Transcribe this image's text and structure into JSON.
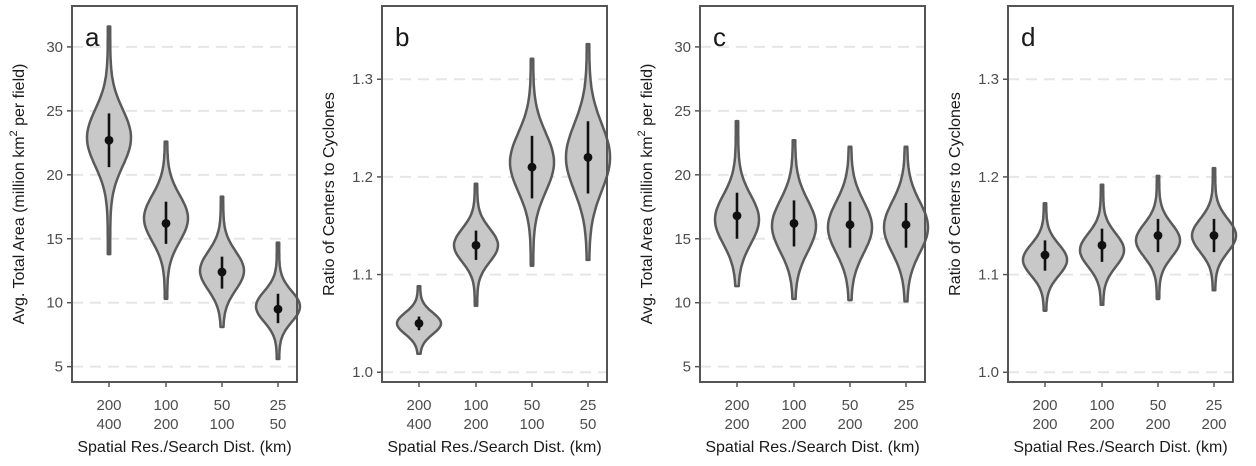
{
  "colors": {
    "violin_fill": "#c8c8c8",
    "violin_stroke": "#5a5a5a",
    "point": "#111111",
    "interval": "#111111",
    "grid": "#e6e6e6",
    "frame": "#555555",
    "tick_text": "#4d4d4d"
  },
  "chart_data": [
    {
      "type": "violin",
      "panel_label": "a",
      "xlabel": "Spatial Res./Search Dist. (km)",
      "ylabel_parts": [
        "Avg. Total Area (million km",
        "2",
        " per field)"
      ],
      "ylim": [
        3.8,
        33.2
      ],
      "yticks": [
        5,
        10,
        15,
        20,
        25,
        30
      ],
      "grid": true,
      "categories": [
        [
          "200",
          "400"
        ],
        [
          "100",
          "200"
        ],
        [
          "50",
          "100"
        ],
        [
          "25",
          "50"
        ]
      ],
      "series": [
        {
          "min": 13.8,
          "max": 31.6,
          "center": 22.7,
          "lower": 20.6,
          "upper": 24.8,
          "mode": 22.9,
          "spread": 2.2
        },
        {
          "min": 10.3,
          "max": 22.6,
          "center": 16.2,
          "lower": 14.6,
          "upper": 17.9,
          "mode": 16.6,
          "spread": 1.8
        },
        {
          "min": 8.1,
          "max": 18.3,
          "center": 12.4,
          "lower": 11.1,
          "upper": 13.6,
          "mode": 12.5,
          "spread": 1.5
        },
        {
          "min": 5.6,
          "max": 14.7,
          "center": 9.5,
          "lower": 8.4,
          "upper": 10.7,
          "mode": 9.7,
          "spread": 1.2
        }
      ]
    },
    {
      "type": "violin",
      "panel_label": "b",
      "xlabel": "Spatial Res./Search Dist. (km)",
      "ylabel_parts": [
        "Ratio of Centers to Cyclones",
        "",
        ""
      ],
      "ylim": [
        0.99,
        1.375
      ],
      "yticks": [
        1.0,
        1.1,
        1.2,
        1.3
      ],
      "grid": true,
      "categories": [
        [
          "200",
          "400"
        ],
        [
          "100",
          "200"
        ],
        [
          "50",
          "100"
        ],
        [
          "25",
          "50"
        ]
      ],
      "series": [
        {
          "min": 1.019,
          "max": 1.088,
          "center": 1.05,
          "lower": 1.043,
          "upper": 1.057,
          "mode": 1.05,
          "spread": 0.011
        },
        {
          "min": 1.068,
          "max": 1.193,
          "center": 1.13,
          "lower": 1.115,
          "upper": 1.145,
          "mode": 1.13,
          "spread": 0.017
        },
        {
          "min": 1.109,
          "max": 1.321,
          "center": 1.21,
          "lower": 1.178,
          "upper": 1.242,
          "mode": 1.215,
          "spread": 0.03
        },
        {
          "min": 1.115,
          "max": 1.336,
          "center": 1.22,
          "lower": 1.183,
          "upper": 1.257,
          "mode": 1.22,
          "spread": 0.034
        }
      ]
    },
    {
      "type": "violin",
      "panel_label": "c",
      "xlabel": "Spatial Res./Search Dist. (km)",
      "ylabel_parts": [
        "Avg. Total Area (million km",
        "2",
        " per field)"
      ],
      "ylim": [
        3.8,
        33.2
      ],
      "yticks": [
        5,
        10,
        15,
        20,
        25,
        30
      ],
      "grid": true,
      "categories": [
        [
          "200",
          "200"
        ],
        [
          "100",
          "200"
        ],
        [
          "50",
          "200"
        ],
        [
          "25",
          "200"
        ]
      ],
      "series": [
        {
          "min": 11.3,
          "max": 24.2,
          "center": 16.8,
          "lower": 15.0,
          "upper": 18.6,
          "mode": 16.5,
          "spread": 1.9
        },
        {
          "min": 10.3,
          "max": 22.7,
          "center": 16.2,
          "lower": 14.4,
          "upper": 18.0,
          "mode": 16.0,
          "spread": 2.0
        },
        {
          "min": 10.2,
          "max": 22.2,
          "center": 16.1,
          "lower": 14.3,
          "upper": 17.9,
          "mode": 15.9,
          "spread": 2.0
        },
        {
          "min": 10.1,
          "max": 22.2,
          "center": 16.1,
          "lower": 14.3,
          "upper": 17.8,
          "mode": 15.9,
          "spread": 2.0
        }
      ]
    },
    {
      "type": "violin",
      "panel_label": "d",
      "xlabel": "Spatial Res./Search Dist. (km)",
      "ylabel_parts": [
        "Ratio of Centers to Cyclones",
        "",
        ""
      ],
      "ylim": [
        0.99,
        1.375
      ],
      "yticks": [
        1.0,
        1.1,
        1.2,
        1.3
      ],
      "grid": true,
      "categories": [
        [
          "200",
          "200"
        ],
        [
          "100",
          "200"
        ],
        [
          "50",
          "200"
        ],
        [
          "25",
          "200"
        ]
      ],
      "series": [
        {
          "min": 1.063,
          "max": 1.173,
          "center": 1.12,
          "lower": 1.104,
          "upper": 1.135,
          "mode": 1.115,
          "spread": 0.016
        },
        {
          "min": 1.069,
          "max": 1.192,
          "center": 1.13,
          "lower": 1.113,
          "upper": 1.147,
          "mode": 1.125,
          "spread": 0.017
        },
        {
          "min": 1.075,
          "max": 1.201,
          "center": 1.14,
          "lower": 1.123,
          "upper": 1.157,
          "mode": 1.135,
          "spread": 0.017
        },
        {
          "min": 1.084,
          "max": 1.209,
          "center": 1.14,
          "lower": 1.123,
          "upper": 1.157,
          "mode": 1.14,
          "spread": 0.017
        }
      ]
    }
  ]
}
